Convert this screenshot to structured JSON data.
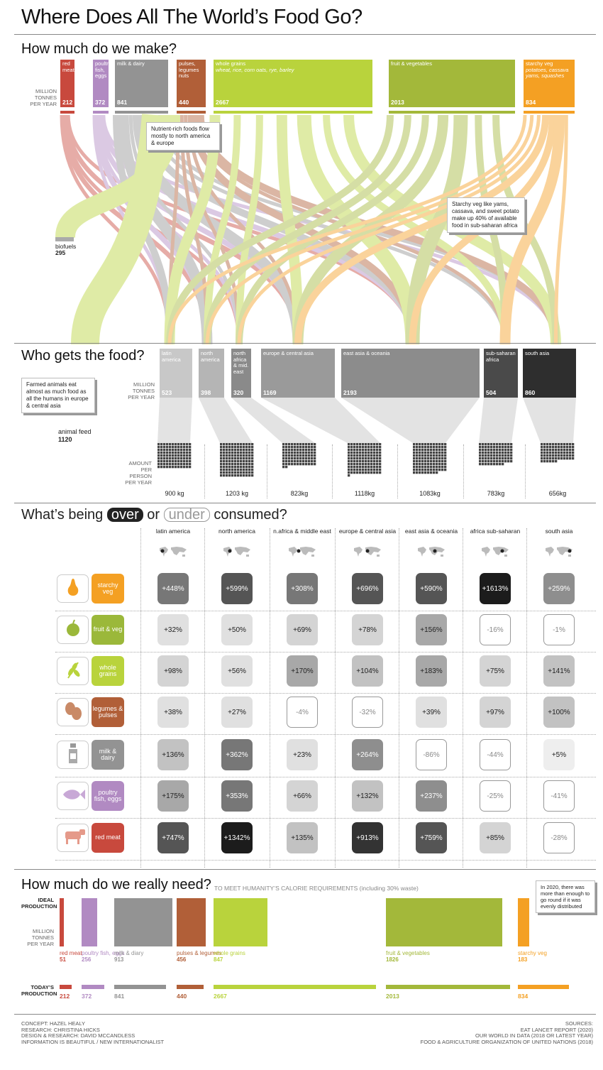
{
  "title": "Where Does All The World’s Food Go?",
  "sections": {
    "make": "How much do we make?",
    "who": "Who gets the food?",
    "over_pre": "What’s being",
    "over_word": "over",
    "over_mid": "or",
    "under_word": "under",
    "over_post": "consumed?",
    "need": "How much do we really need?",
    "need_sub": "TO MEET HUMANITY’S CALORIE REQUIREMENTS (including 30% waste)"
  },
  "units": {
    "million_tonnes": "MILLION TONNES PER YEAR",
    "per_person": "AMOUNT PER PERSON PER YEAR",
    "ideal": "IDEAL PRODUCTION",
    "todays": "TODAY’S PRODUCTION"
  },
  "colors": {
    "red_meat": "#c8493d",
    "poultry": "#b18ac2",
    "milk": "#939393",
    "pulses": "#b15f38",
    "grains": "#b9d33c",
    "fruit": "#a3b83a",
    "starchy": "#f4a023"
  },
  "production": [
    {
      "key": "red_meat",
      "label": "red meat",
      "sub": "",
      "value": "212"
    },
    {
      "key": "poultry",
      "label": "poultry fish, eggs",
      "sub": "",
      "value": "372"
    },
    {
      "key": "milk",
      "label": "milk & dairy",
      "sub": "",
      "value": "841"
    },
    {
      "key": "pulses",
      "label": "pulses, legumes nuts",
      "sub": "",
      "value": "440"
    },
    {
      "key": "grains",
      "label": "whole grains",
      "sub": "wheat, rice, corn oats, rye, barley",
      "value": "2667"
    },
    {
      "key": "fruit",
      "label": "fruit & vegetables",
      "sub": "",
      "value": "2013"
    },
    {
      "key": "starchy",
      "label": "starchy veg",
      "sub": "potatoes, cassava yams, squashes",
      "value": "834"
    }
  ],
  "biofuels": {
    "label": "biofuels",
    "value": "295"
  },
  "animal_feed": {
    "label": "animal feed",
    "value": "1120"
  },
  "callouts": {
    "nutrient": "Nutrient-rich foods flow mostly to north america & europe",
    "starchy": "Starchy veg like yams, cassava, and sweet potato make up 40% of available food in sub-saharan africa",
    "feed": "Farmed animals eat almost as much food as all the humans in europe & central asia",
    "enough": "In 2020, there was more than enough to go round if it was evenly distributed"
  },
  "regions": [
    {
      "label": "latin america",
      "value": "523",
      "kg": "900 kg",
      "color": "#c8c8c8"
    },
    {
      "label": "north america",
      "value": "398",
      "kg": "1203 kg",
      "color": "#b5b5b5"
    },
    {
      "label": "north africa & mid. east",
      "value": "320",
      "kg": "823kg",
      "color": "#8a8a8a"
    },
    {
      "label": "europe & central asia",
      "value": "1169",
      "kg": "1118kg",
      "color": "#9a9a9a"
    },
    {
      "label": "east asia & oceania",
      "value": "2193",
      "kg": "1083kg",
      "color": "#8c8c8c"
    },
    {
      "label": "sub-saharan africa",
      "value": "504",
      "kg": "783kg",
      "color": "#4a4a4a"
    },
    {
      "label": "south asia",
      "value": "860",
      "kg": "656kg",
      "color": "#2e2e2e"
    }
  ],
  "over_cols": [
    "latin america",
    "north america",
    "n.africa & middle east",
    "europe & central asia",
    "east asia & oceania",
    "africa sub-saharan",
    "south asia"
  ],
  "over_rows": [
    {
      "label": "starchy veg",
      "color": "#f4a023",
      "icon": "pear-icon",
      "cells": [
        "+448%",
        "+599%",
        "+308%",
        "+696%",
        "+590%",
        "+1613%",
        "+259%"
      ]
    },
    {
      "label": "fruit & veg",
      "color": "#9bb83a",
      "icon": "apple-icon",
      "cells": [
        "+32%",
        "+50%",
        "+69%",
        "+78%",
        "+156%",
        "-16%",
        "-1%"
      ]
    },
    {
      "label": "whole grains",
      "color": "#b9d33c",
      "icon": "wheat-icon",
      "cells": [
        "+98%",
        "+56%",
        "+170%",
        "+104%",
        "+183%",
        "+75%",
        "+141%"
      ]
    },
    {
      "label": "legumes & pulses",
      "color": "#b15f38",
      "icon": "beans-icon",
      "cells": [
        "+38%",
        "+27%",
        "-4%",
        "-32%",
        "+39%",
        "+97%",
        "+100%"
      ]
    },
    {
      "label": "milk & dairy",
      "color": "#939393",
      "icon": "milk-bottle-icon",
      "cells": [
        "+136%",
        "+362%",
        "+23%",
        "+264%",
        "-86%",
        "-44%",
        "+5%"
      ]
    },
    {
      "label": "poultry fish, eggs",
      "color": "#b18ac2",
      "icon": "fish-icon",
      "cells": [
        "+175%",
        "+353%",
        "+66%",
        "+132%",
        "+237%",
        "-25%",
        "-41%"
      ]
    },
    {
      "label": "red meat",
      "color": "#c8493d",
      "icon": "cow-icon",
      "cells": [
        "+747%",
        "+1342%",
        "+135%",
        "+913%",
        "+759%",
        "+85%",
        "-28%"
      ]
    }
  ],
  "need": [
    {
      "label": "red meat",
      "value": "51",
      "today": "212",
      "color": "#c8493d"
    },
    {
      "label": "poultry fish, eggs",
      "value": "256",
      "today": "372",
      "color": "#b18ac2"
    },
    {
      "label": "milk & diary",
      "value": "913",
      "today": "841",
      "color": "#939393"
    },
    {
      "label": "pulses & legumes",
      "value": "456",
      "today": "440",
      "color": "#b15f38"
    },
    {
      "label": "whole grains",
      "value": "847",
      "today": "2667",
      "color": "#b9d33c"
    },
    {
      "label": "fruit & vegetables",
      "value": "1826",
      "today": "2013",
      "color": "#a3b83a"
    },
    {
      "label": "starchy veg",
      "value": "183",
      "today": "834",
      "color": "#f4a023"
    }
  ],
  "credits": {
    "left": [
      "CONCEPT: HAZEL HEALY",
      "RESEARCH: CHRISTINA HICKS",
      "DESIGN & RESEARCH: DAVID McCANDLESS",
      "INFORMATION IS BEAUTIFUL / NEW INTERNATIONALIST"
    ],
    "right": [
      "SOURCES:",
      "EAT LANCET REPORT (2020)",
      "OUR WORLD IN DATA (2018 or latest year)",
      "FOOD & AGRICULTURE ORGANIZATION OF UNITED NATIONS (2018)"
    ]
  }
}
